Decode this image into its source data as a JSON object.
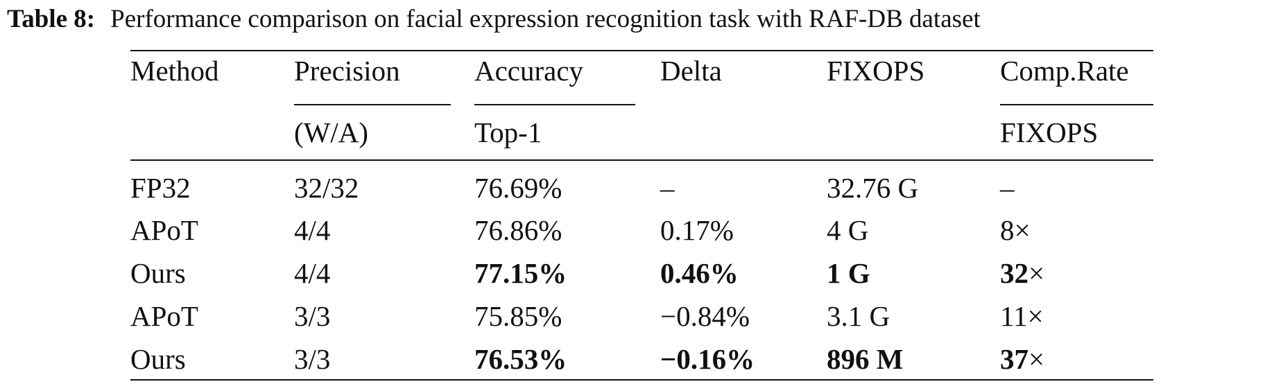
{
  "caption": {
    "label": "Table 8:",
    "text": "Performance comparison on facial expression recognition task with RAF-DB dataset"
  },
  "header": {
    "method": "Method",
    "precision": "Precision",
    "precision_sub": "(W/A)",
    "accuracy": "Accuracy",
    "accuracy_sub": "Top-1",
    "delta": "Delta",
    "fixops": "FIXOPS",
    "comp_rate": "Comp.Rate",
    "comp_rate_sub": "FIXOPS"
  },
  "rows": [
    {
      "method": "FP32",
      "precision": "32/32",
      "accuracy": "76.69%",
      "delta": "–",
      "fixops": "32.76 G",
      "comp": "–",
      "comp_unit": "",
      "bold": false
    },
    {
      "method": "APoT",
      "precision": "4/4",
      "accuracy": "76.86%",
      "delta": "0.17%",
      "fixops": "4 G",
      "comp": "8",
      "comp_unit": "×",
      "bold": false
    },
    {
      "method": "Ours",
      "precision": "4/4",
      "accuracy": "77.15%",
      "delta": "0.46%",
      "fixops": "1 G",
      "comp": "32",
      "comp_unit": "×",
      "bold": true
    },
    {
      "method": "APoT",
      "precision": "3/3",
      "accuracy": "75.85%",
      "delta": "−0.84%",
      "fixops": "3.1 G",
      "comp": "11",
      "comp_unit": "×",
      "bold": false
    },
    {
      "method": "Ours",
      "precision": "3/3",
      "accuracy": "76.53%",
      "delta": "−0.16%",
      "fixops": "896 M",
      "comp": "37",
      "comp_unit": "×",
      "bold": true
    }
  ]
}
